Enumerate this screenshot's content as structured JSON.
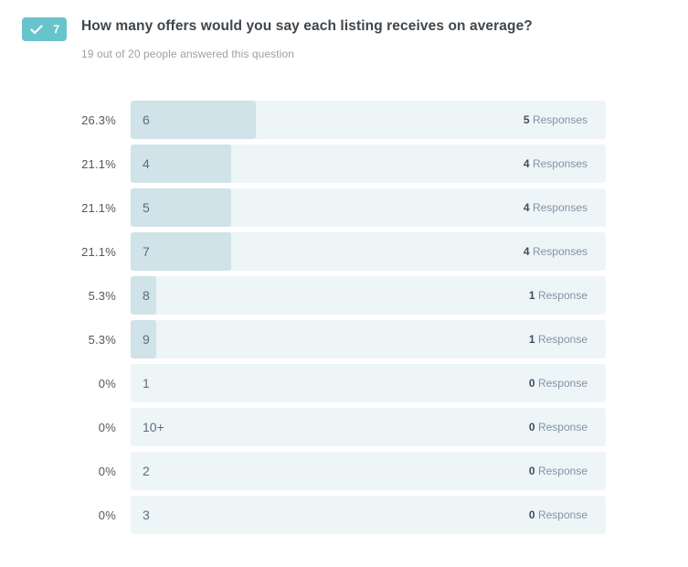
{
  "header": {
    "badge": {
      "number": "7",
      "icon": "checkmark",
      "color": "#67c4ca"
    },
    "title": "How many offers would you say each listing receives on average?",
    "subtitle": "19 out of 20 people answered this question"
  },
  "chart_data": {
    "type": "bar",
    "orientation": "horizontal",
    "title": "How many offers would you say each listing receives on average?",
    "answered": 19,
    "total_people": 20,
    "categories": [
      "6",
      "4",
      "5",
      "7",
      "8",
      "9",
      "1",
      "10+",
      "2",
      "3"
    ],
    "values_percent": [
      26.3,
      21.1,
      21.1,
      21.1,
      5.3,
      5.3,
      0,
      0,
      0,
      0
    ],
    "values_responses": [
      5,
      4,
      4,
      4,
      1,
      1,
      0,
      0,
      0,
      0
    ],
    "colors": {
      "bar_fill": "#cfe3e8",
      "bar_track": "#edf5f7"
    },
    "rows": [
      {
        "percent_label": "26.3%",
        "answer": "6",
        "count": "5",
        "count_word": "Responses",
        "percent": 26.3
      },
      {
        "percent_label": "21.1%",
        "answer": "4",
        "count": "4",
        "count_word": "Responses",
        "percent": 21.1
      },
      {
        "percent_label": "21.1%",
        "answer": "5",
        "count": "4",
        "count_word": "Responses",
        "percent": 21.1
      },
      {
        "percent_label": "21.1%",
        "answer": "7",
        "count": "4",
        "count_word": "Responses",
        "percent": 21.1
      },
      {
        "percent_label": "5.3%",
        "answer": "8",
        "count": "1",
        "count_word": "Response",
        "percent": 5.3
      },
      {
        "percent_label": "5.3%",
        "answer": "9",
        "count": "1",
        "count_word": "Response",
        "percent": 5.3
      },
      {
        "percent_label": "0%",
        "answer": "1",
        "count": "0",
        "count_word": "Response",
        "percent": 0
      },
      {
        "percent_label": "0%",
        "answer": "10+",
        "count": "0",
        "count_word": "Response",
        "percent": 0
      },
      {
        "percent_label": "0%",
        "answer": "2",
        "count": "0",
        "count_word": "Response",
        "percent": 0
      },
      {
        "percent_label": "0%",
        "answer": "3",
        "count": "0",
        "count_word": "Response",
        "percent": 0
      }
    ]
  }
}
